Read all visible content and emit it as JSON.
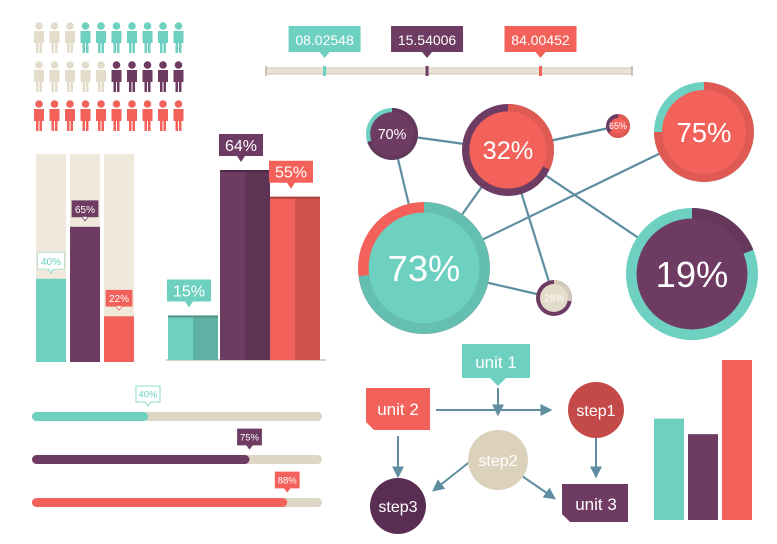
{
  "colors": {
    "teal": "#6ed0c0",
    "plum": "#6e3c62",
    "coral": "#f2625a",
    "beige": "#e4dcca",
    "track": "#ded6c5",
    "line": "#5e8ea0"
  },
  "people_grid": {
    "rows": [
      [
        "beige",
        "beige",
        "beige",
        "teal",
        "teal",
        "teal",
        "teal",
        "teal",
        "teal",
        "teal"
      ],
      [
        "beige",
        "beige",
        "beige",
        "beige",
        "beige",
        "plum",
        "plum",
        "plum",
        "plum",
        "plum"
      ],
      [
        "coral",
        "coral",
        "coral",
        "coral",
        "coral",
        "coral",
        "coral",
        "coral",
        "coral",
        "coral"
      ]
    ]
  },
  "timeline": {
    "markers": [
      {
        "label": "08.02548",
        "color": "teal",
        "pos": 0.16
      },
      {
        "label": "15.54006",
        "color": "plum",
        "pos": 0.44
      },
      {
        "label": "84.00452",
        "color": "coral",
        "pos": 0.75
      }
    ]
  },
  "vertical_progress": [
    {
      "label": "40%",
      "value": 0.4,
      "color": "teal"
    },
    {
      "label": "65%",
      "value": 0.65,
      "color": "plum"
    },
    {
      "label": "22%",
      "value": 0.22,
      "color": "coral"
    }
  ],
  "bar_chart": {
    "bars": [
      {
        "label": "15%",
        "value": 15,
        "color": "teal"
      },
      {
        "label": "64%",
        "value": 64,
        "color": "plum"
      },
      {
        "label": "55%",
        "value": 55,
        "color": "coral"
      }
    ]
  },
  "bubbles": [
    {
      "label": "70%",
      "value": 70,
      "fill": "plum",
      "ring": "teal"
    },
    {
      "label": "32%",
      "value": 32,
      "fill": "coral",
      "ring": "plum"
    },
    {
      "label": "65%",
      "value": 65,
      "fill": "coral",
      "ring": "plum"
    },
    {
      "label": "75%",
      "value": 75,
      "fill": "coral",
      "ring": "teal"
    },
    {
      "label": "73%",
      "value": 73,
      "fill": "teal",
      "ring": "coral"
    },
    {
      "label": "28%",
      "value": 28,
      "fill": "beige",
      "ring": "plum"
    },
    {
      "label": "19%",
      "value": 19,
      "fill": "plum",
      "ring": "teal"
    }
  ],
  "horizontal_progress": [
    {
      "label": "40%",
      "value": 0.4,
      "color": "teal"
    },
    {
      "label": "75%",
      "value": 0.75,
      "color": "plum"
    },
    {
      "label": "88%",
      "value": 0.88,
      "color": "coral"
    }
  ],
  "flowchart": {
    "unit1": "unit 1",
    "unit2": "unit 2",
    "step1": "step1",
    "step2": "step2",
    "step3": "step3",
    "unit3": "unit 3"
  },
  "mini_bars": [
    {
      "value": 2.6,
      "color": "teal"
    },
    {
      "value": 2.2,
      "color": "plum"
    },
    {
      "value": 4.1,
      "color": "coral"
    }
  ]
}
